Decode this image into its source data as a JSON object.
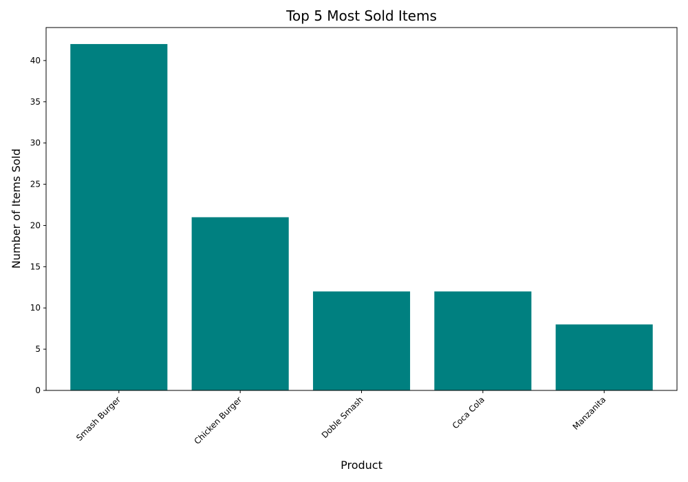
{
  "chart_data": {
    "type": "bar",
    "title": "Top 5 Most Sold Items",
    "xlabel": "Product",
    "ylabel": "Number of Items Sold",
    "categories": [
      "Smash Burger",
      "Chicken Burger",
      "Doble Smash",
      "Coca Cola",
      "Manzanita"
    ],
    "values": [
      42,
      21,
      12,
      12,
      8
    ],
    "ylim": [
      0,
      44
    ],
    "yticks": [
      0,
      5,
      10,
      15,
      20,
      25,
      30,
      35,
      40
    ],
    "bar_color": "#008080",
    "grid": false,
    "legend": "none",
    "xtick_rotation": 45
  }
}
